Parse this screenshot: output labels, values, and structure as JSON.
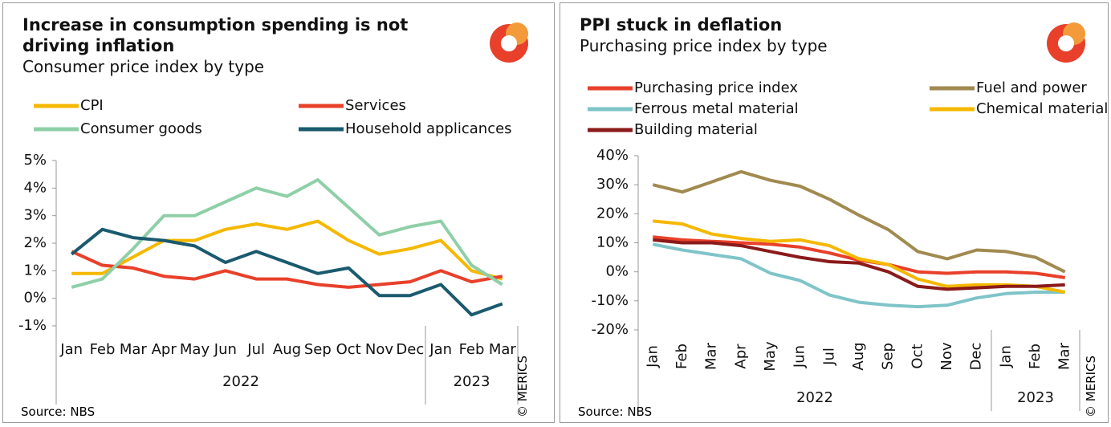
{
  "chart_data": [
    {
      "type": "line",
      "title": "Increase in consumption spending is not driving inflation",
      "subtitle": "Consumer price index by type",
      "categories": [
        "Jan",
        "Feb",
        "Mar",
        "Apr",
        "May",
        "Jun",
        "Jul",
        "Aug",
        "Sep",
        "Oct",
        "Nov",
        "Dec",
        "Jan",
        "Feb",
        "Mar"
      ],
      "groups": [
        {
          "label": "2022",
          "count": 12
        },
        {
          "label": "2023",
          "count": 3
        }
      ],
      "ylim": [
        -1,
        5
      ],
      "yticks": [
        {
          "value": -1,
          "label": "-1%"
        },
        {
          "value": 0,
          "label": "0%"
        },
        {
          "value": 1,
          "label": "1%"
        },
        {
          "value": 2,
          "label": "2%"
        },
        {
          "value": 3,
          "label": "3%"
        },
        {
          "value": 4,
          "label": "4%"
        },
        {
          "value": 5,
          "label": "5%"
        }
      ],
      "series": [
        {
          "name": "CPI",
          "color": "#f5b800",
          "values": [
            0.9,
            0.9,
            1.5,
            2.1,
            2.1,
            2.5,
            2.7,
            2.5,
            2.8,
            2.1,
            1.6,
            1.8,
            2.1,
            1.0,
            0.7
          ]
        },
        {
          "name": "Services",
          "color": "#e8402a",
          "values": [
            1.7,
            1.2,
            1.1,
            0.8,
            0.7,
            1.0,
            0.7,
            0.7,
            0.5,
            0.4,
            0.5,
            0.6,
            1.0,
            0.6,
            0.8
          ]
        },
        {
          "name": "Consumer goods",
          "color": "#8fcfa8",
          "values": [
            0.4,
            0.7,
            1.8,
            3.0,
            3.0,
            3.5,
            4.0,
            3.7,
            4.3,
            3.3,
            2.3,
            2.6,
            2.8,
            1.2,
            0.5
          ]
        },
        {
          "name": "Household applicances",
          "color": "#1a5a6e",
          "values": [
            1.6,
            2.5,
            2.2,
            2.1,
            1.9,
            1.3,
            1.7,
            1.3,
            0.9,
            1.1,
            0.1,
            0.1,
            0.5,
            -0.6,
            -0.2
          ]
        }
      ],
      "source": "Source: NBS",
      "credit": "© MERICS"
    },
    {
      "type": "line",
      "title": "PPI stuck in deflation",
      "subtitle": "Purchasing price index by type",
      "categories": [
        "Jan",
        "Feb",
        "Mar",
        "Apr",
        "May",
        "Jun",
        "Jul",
        "Aug",
        "Sep",
        "Oct",
        "Nov",
        "Dec",
        "Jan",
        "Feb",
        "Mar"
      ],
      "groups": [
        {
          "label": "2022",
          "count": 12
        },
        {
          "label": "2023",
          "count": 3
        }
      ],
      "ylim": [
        -20,
        40
      ],
      "yticks": [
        {
          "value": -20,
          "label": "-20%"
        },
        {
          "value": -10,
          "label": "-10%"
        },
        {
          "value": 0,
          "label": "0%"
        },
        {
          "value": 10,
          "label": "10%"
        },
        {
          "value": 20,
          "label": "20%"
        },
        {
          "value": 30,
          "label": "30%"
        },
        {
          "value": 40,
          "label": "40%"
        }
      ],
      "series": [
        {
          "name": "Purchasing price index",
          "color": "#e8402a",
          "values": [
            12,
            11,
            10.5,
            10,
            9.5,
            8.5,
            6.5,
            4,
            2.5,
            0,
            -0.5,
            0,
            0,
            -0.5,
            -2
          ]
        },
        {
          "name": "Fuel and power",
          "color": "#a08a50",
          "values": [
            30,
            27.5,
            31,
            34.5,
            31.5,
            29.5,
            25,
            19.5,
            14.5,
            7,
            4.5,
            7.5,
            7,
            5,
            0
          ]
        },
        {
          "name": "Ferrous metal material",
          "color": "#7fc4c8",
          "values": [
            9.5,
            7.5,
            6,
            4.5,
            -0.5,
            -3,
            -8,
            -10.5,
            -11.5,
            -12,
            -11.5,
            -9,
            -7.5,
            -7,
            -7
          ]
        },
        {
          "name": "Chemical material",
          "color": "#f5b800",
          "values": [
            17.5,
            16.5,
            13,
            11.5,
            10.5,
            11,
            9,
            4.5,
            2.5,
            -2.5,
            -5,
            -4.5,
            -4.5,
            -5,
            -7
          ]
        },
        {
          "name": "Building material",
          "color": "#8b1a1a",
          "values": [
            11,
            10,
            10,
            9,
            7,
            5,
            3.5,
            3,
            0,
            -5,
            -6,
            -5.5,
            -5,
            -5,
            -4.5
          ]
        }
      ],
      "source": "Source: NBS",
      "credit": "© MERICS"
    }
  ]
}
